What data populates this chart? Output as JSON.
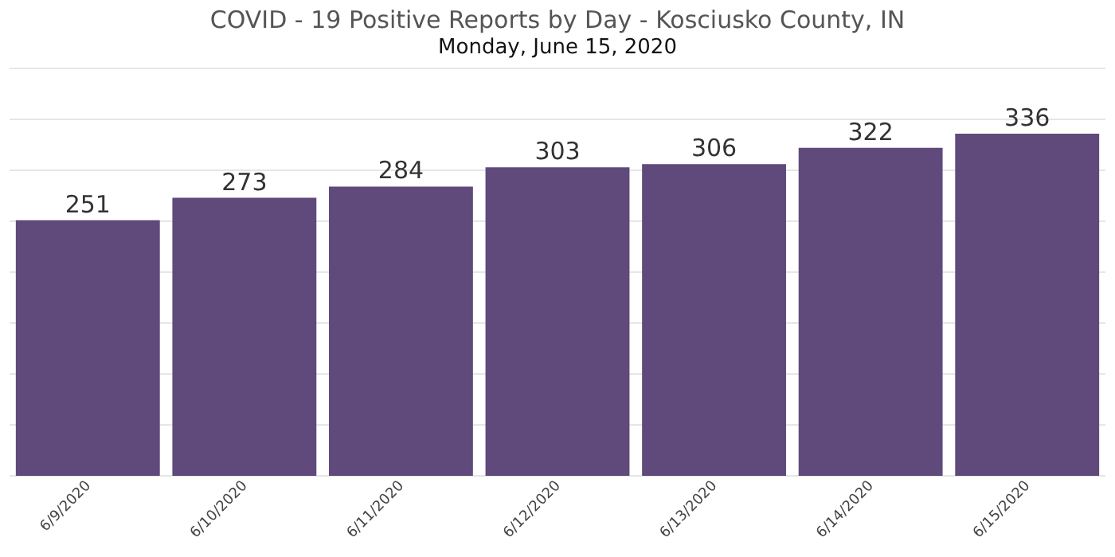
{
  "chart_data": {
    "type": "bar",
    "title": "COVID - 19 Positive Reports by Day - Kosciusko County, IN",
    "subtitle": "Monday, June 15, 2020",
    "categories": [
      "6/9/2020",
      "6/10/2020",
      "6/11/2020",
      "6/12/2020",
      "6/13/2020",
      "6/14/2020",
      "6/15/2020"
    ],
    "values": [
      251,
      273,
      284,
      303,
      306,
      322,
      336
    ],
    "color": "#5f4a7b",
    "ylim": [
      0,
      400
    ],
    "yticks": [
      {
        "value": 0,
        "label": null
      },
      {
        "value": 50,
        "label": null
      },
      {
        "value": 100,
        "label": null
      },
      {
        "value": 150,
        "label": null
      },
      {
        "value": 200,
        "label": null
      },
      {
        "value": 250,
        "label": null
      },
      {
        "value": 300,
        "label": null
      },
      {
        "value": 350,
        "label": null
      },
      {
        "value": 400,
        "label": null
      }
    ],
    "grid": "y",
    "tick_labels": "x",
    "data_labels": true
  }
}
